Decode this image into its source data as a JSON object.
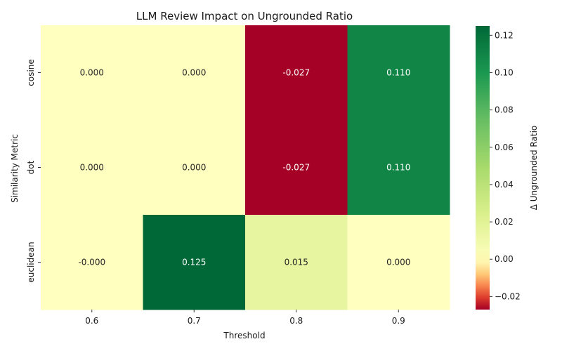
{
  "chart_data": {
    "type": "heatmap",
    "title": "LLM Review Impact on Ungrounded Ratio",
    "xlabel": "Threshold",
    "ylabel": "Similarity Metric",
    "x_categories": [
      "0.6",
      "0.7",
      "0.8",
      "0.9"
    ],
    "y_categories": [
      "cosine",
      "dot",
      "euclidean"
    ],
    "values": [
      [
        0.0,
        0.0,
        -0.027,
        0.11
      ],
      [
        0.0,
        0.0,
        -0.027,
        0.11
      ],
      [
        -0.0,
        0.125,
        0.015,
        0.0
      ]
    ],
    "value_labels": [
      [
        "0.000",
        "0.000",
        "-0.027",
        "0.110"
      ],
      [
        "0.000",
        "0.000",
        "-0.027",
        "0.110"
      ],
      [
        "-0.000",
        "0.125",
        "0.015",
        "0.000"
      ]
    ],
    "colorbar": {
      "label": "Δ Ungrounded Ratio",
      "range": [
        -0.027,
        0.125
      ],
      "ticks": [
        -0.02,
        0.0,
        0.02,
        0.04,
        0.06,
        0.08,
        0.1,
        0.12
      ],
      "tick_labels": [
        "−0.02",
        "0.00",
        "0.02",
        "0.04",
        "0.06",
        "0.08",
        "0.10",
        "0.12"
      ],
      "colormap": "RdYlGn, centered at 0"
    }
  }
}
